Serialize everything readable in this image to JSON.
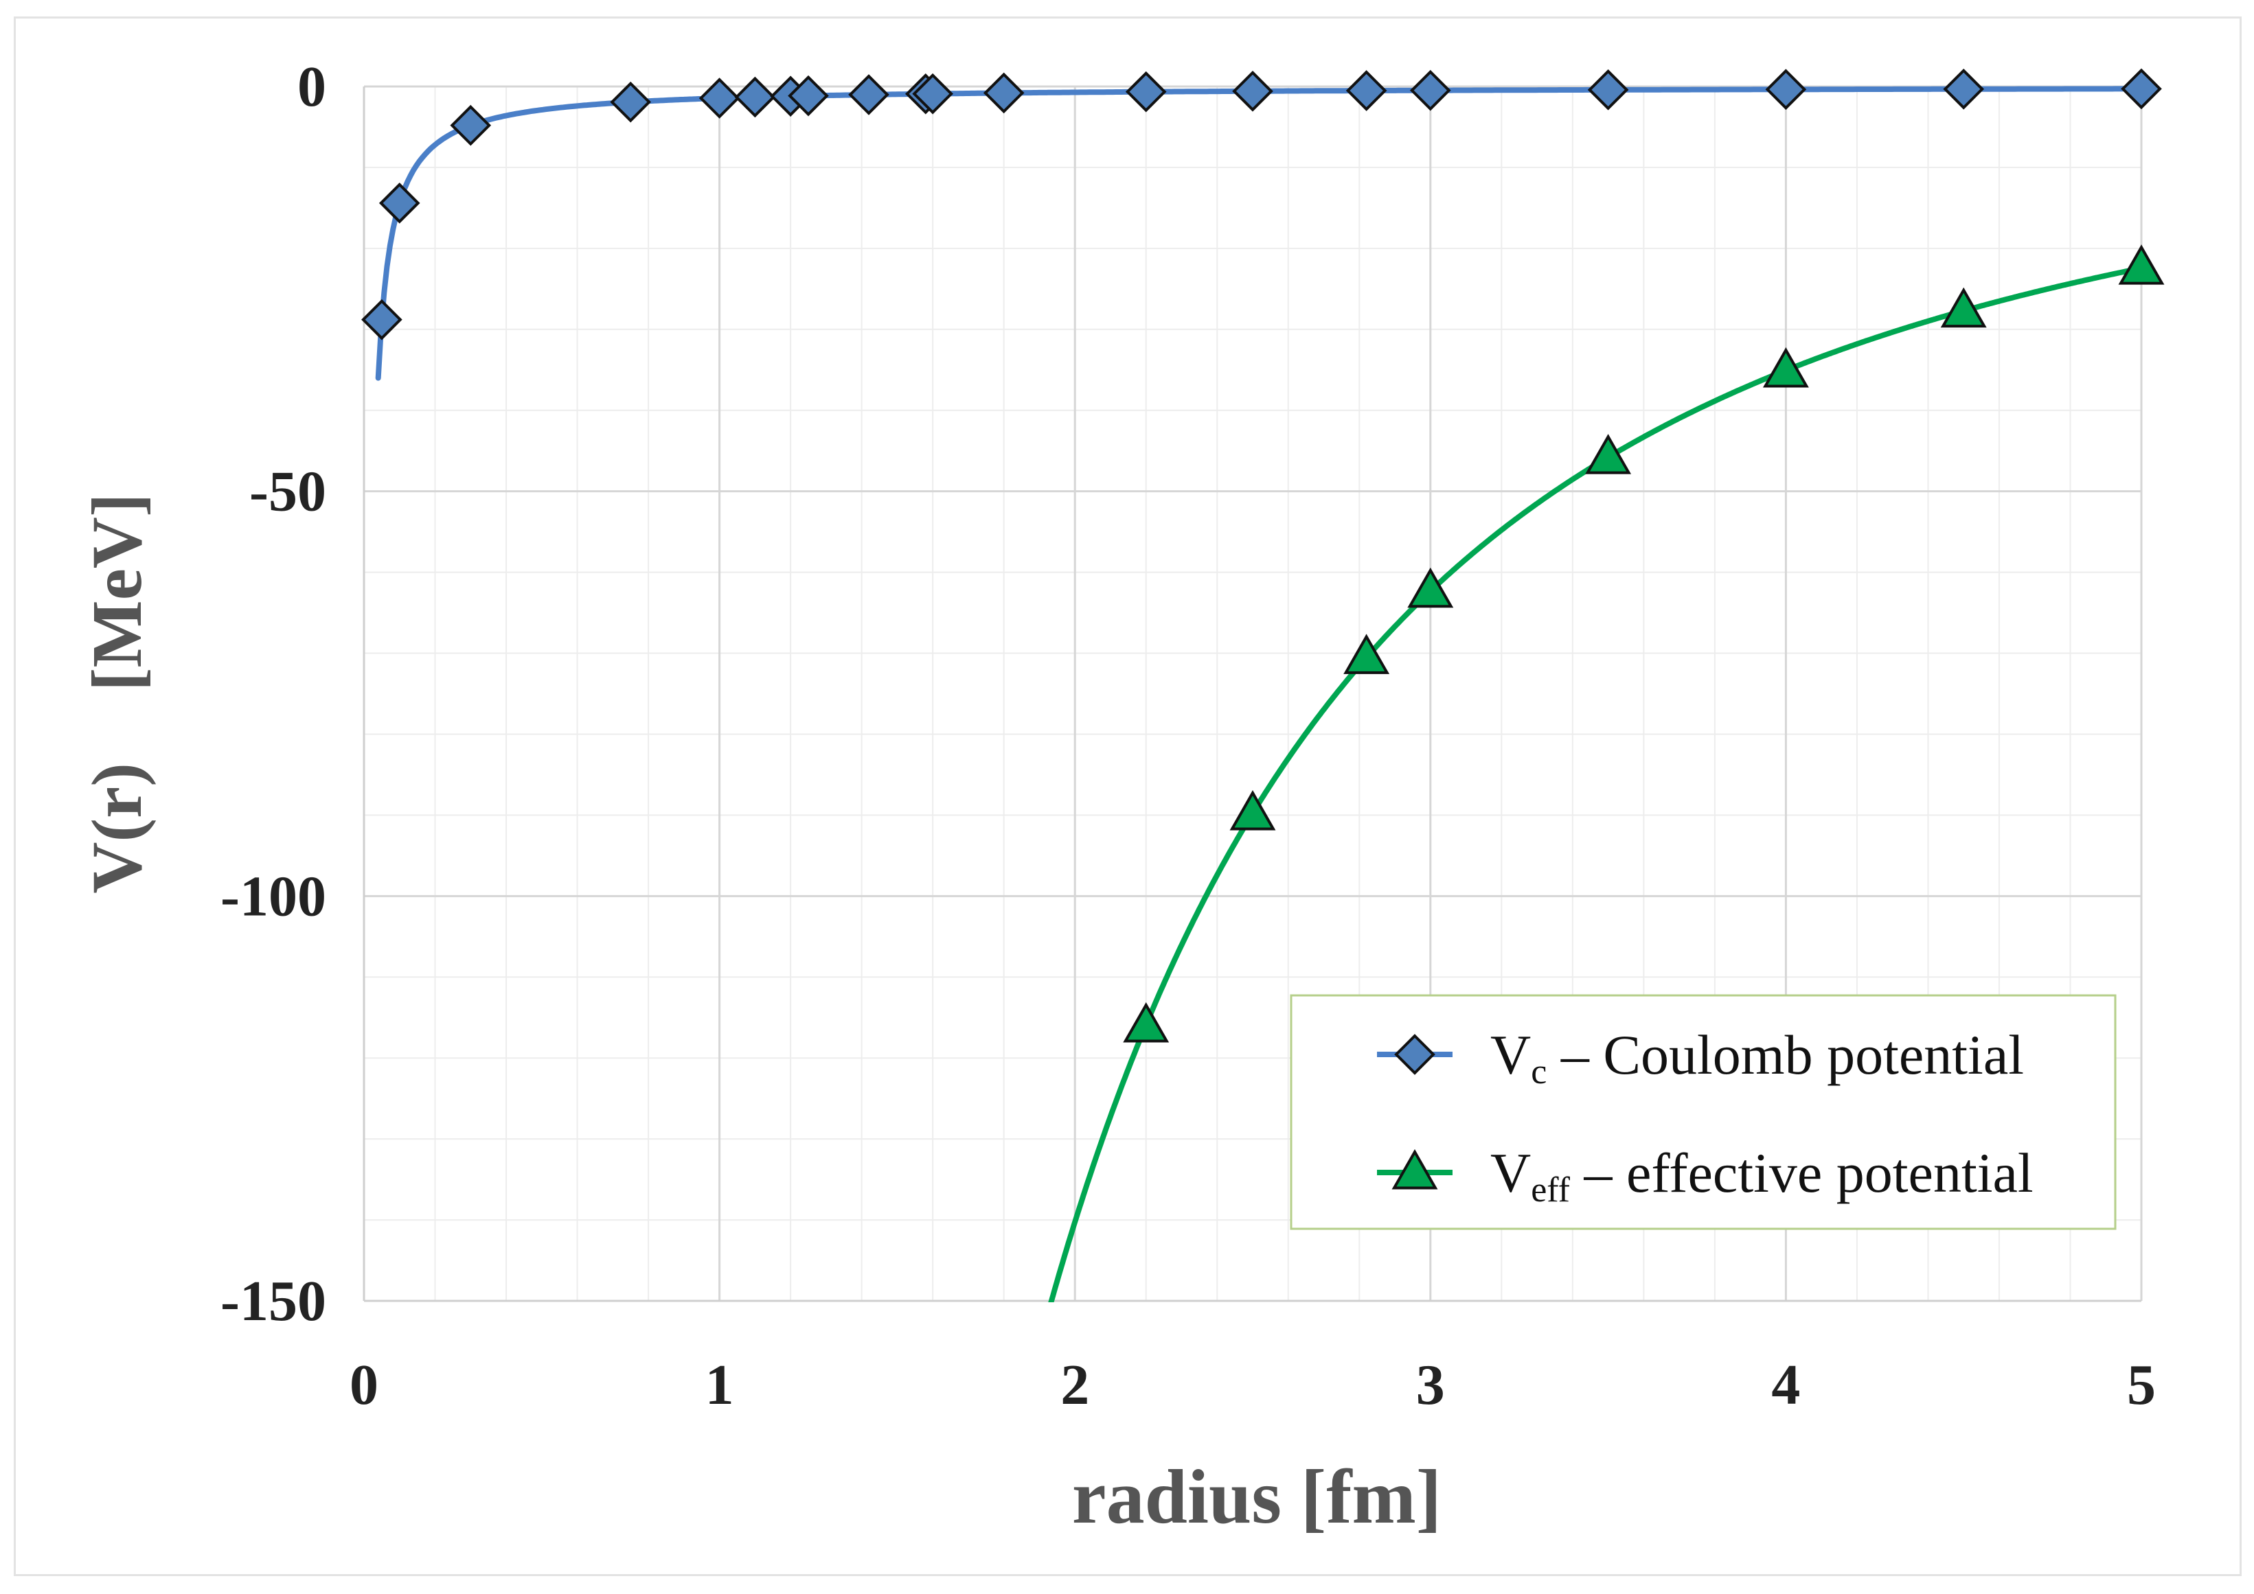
{
  "chart_data": {
    "type": "line",
    "title": "",
    "xlabel": "radius [fm]",
    "ylabel": "V(r)    [MeV]",
    "xlim": [
      0,
      5
    ],
    "ylim": [
      -150,
      0
    ],
    "x_ticks": [
      "0",
      "1",
      "2",
      "3",
      "4",
      "5"
    ],
    "y_ticks": [
      "0",
      "-50",
      "-100",
      "-150"
    ],
    "x_tick_values": [
      0,
      1,
      2,
      3,
      4,
      5
    ],
    "y_tick_values": [
      0,
      -50,
      -100,
      -150
    ],
    "grid": true,
    "legend_position": "bottom-right",
    "series": [
      {
        "name": "Vc – Coulomb potential",
        "legend_main": "V",
        "legend_sub": "c",
        "legend_rest": " – Coulomb potential",
        "color": "#4A7FC8",
        "marker_fill": "#4F81BD",
        "marker": "diamond",
        "curve": "k/r",
        "k": -1.44,
        "x": [
          0.05,
          0.1,
          0.3,
          0.75,
          1.0,
          1.1,
          1.2,
          1.25,
          1.42,
          1.58,
          1.6,
          1.8,
          2.2,
          2.5,
          2.82,
          3.0,
          3.5,
          4.0,
          4.5,
          5.0
        ],
        "y": [
          -28.8,
          -14.4,
          -4.8,
          -1.92,
          -1.44,
          -1.31,
          -1.2,
          -1.15,
          -1.01,
          -0.91,
          -0.9,
          -0.8,
          -0.65,
          -0.58,
          -0.51,
          -0.48,
          -0.41,
          -0.36,
          -0.32,
          -0.29
        ]
      },
      {
        "name": "Veff – effective potential",
        "legend_main": "V",
        "legend_sub": "eff",
        "legend_rest": " – effective potential",
        "color": "#00A651",
        "marker_fill": "#00A651",
        "marker": "triangle",
        "curve": "k/r^2",
        "k": -561,
        "x": [
          2.2,
          2.5,
          2.82,
          3.0,
          3.5,
          4.0,
          4.5,
          5.0
        ],
        "y": [
          -116,
          -89.8,
          -70.5,
          -62.3,
          -45.8,
          -35.1,
          -27.7,
          -22.4
        ]
      }
    ]
  }
}
